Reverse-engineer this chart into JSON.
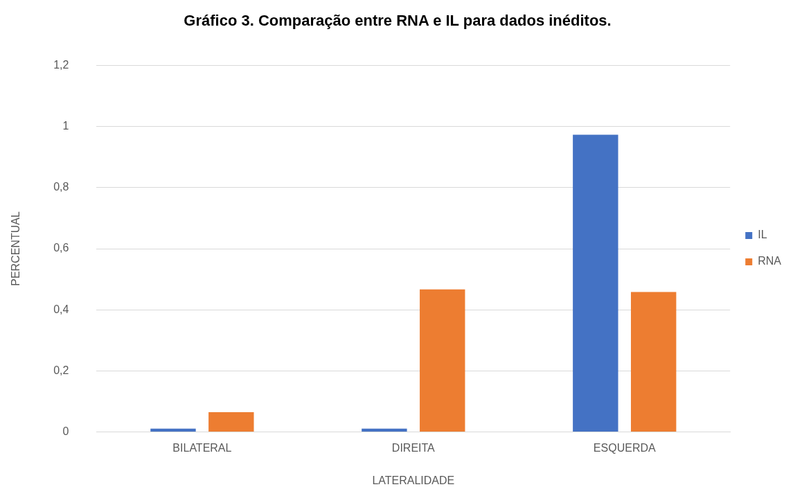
{
  "chart_data": {
    "type": "bar",
    "title": "Gráfico 3. Comparação entre RNA e IL para dados inéditos.",
    "xlabel": "LATERALIDADE",
    "ylabel": "PERCENTUAL",
    "categories": [
      "BILATERAL",
      "DIREITA",
      "ESQUERDA"
    ],
    "series": [
      {
        "name": "IL",
        "color": "#4472c4",
        "values": [
          0.011,
          0.011,
          0.973
        ]
      },
      {
        "name": "RNA",
        "color": "#ed7d31",
        "values": [
          0.065,
          0.467,
          0.458
        ]
      }
    ],
    "ylim": [
      0,
      1.2
    ],
    "yticks": [
      0,
      {
        "value": 0.2,
        "label": "0,2"
      },
      {
        "value": 0.4,
        "label": "0,4"
      },
      {
        "value": 0.6,
        "label": "0,6"
      },
      {
        "value": 0.8,
        "label": "0,8"
      },
      1,
      {
        "value": 1.2,
        "label": "1,2"
      }
    ],
    "grid": "y",
    "legend": "right"
  }
}
